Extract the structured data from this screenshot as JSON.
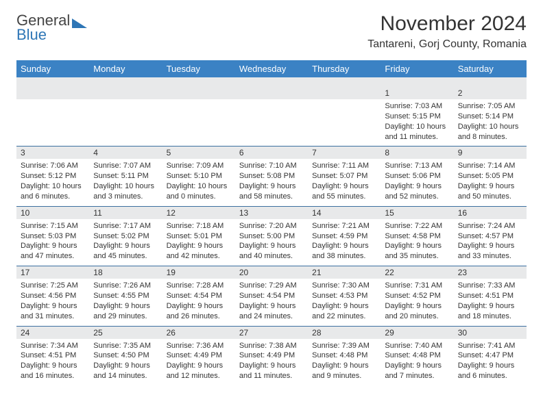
{
  "brand": {
    "line1": "General",
    "line2": "Blue"
  },
  "title": "November 2024",
  "location": "Tantareni, Gorj County, Romania",
  "colors": {
    "header_bg": "#3b82c4",
    "header_text": "#ffffff",
    "daynum_bg": "#e8e9ea",
    "week_border": "#3b6fa0",
    "text": "#333333",
    "brand_blue": "#2e76b6",
    "page_bg": "#ffffff"
  },
  "day_names": [
    "Sunday",
    "Monday",
    "Tuesday",
    "Wednesday",
    "Thursday",
    "Friday",
    "Saturday"
  ],
  "weeks": [
    [
      {
        "n": "",
        "sr": "",
        "ss": "",
        "dl": ""
      },
      {
        "n": "",
        "sr": "",
        "ss": "",
        "dl": ""
      },
      {
        "n": "",
        "sr": "",
        "ss": "",
        "dl": ""
      },
      {
        "n": "",
        "sr": "",
        "ss": "",
        "dl": ""
      },
      {
        "n": "",
        "sr": "",
        "ss": "",
        "dl": ""
      },
      {
        "n": "1",
        "sr": "Sunrise: 7:03 AM",
        "ss": "Sunset: 5:15 PM",
        "dl": "Daylight: 10 hours and 11 minutes."
      },
      {
        "n": "2",
        "sr": "Sunrise: 7:05 AM",
        "ss": "Sunset: 5:14 PM",
        "dl": "Daylight: 10 hours and 8 minutes."
      }
    ],
    [
      {
        "n": "3",
        "sr": "Sunrise: 7:06 AM",
        "ss": "Sunset: 5:12 PM",
        "dl": "Daylight: 10 hours and 6 minutes."
      },
      {
        "n": "4",
        "sr": "Sunrise: 7:07 AM",
        "ss": "Sunset: 5:11 PM",
        "dl": "Daylight: 10 hours and 3 minutes."
      },
      {
        "n": "5",
        "sr": "Sunrise: 7:09 AM",
        "ss": "Sunset: 5:10 PM",
        "dl": "Daylight: 10 hours and 0 minutes."
      },
      {
        "n": "6",
        "sr": "Sunrise: 7:10 AM",
        "ss": "Sunset: 5:08 PM",
        "dl": "Daylight: 9 hours and 58 minutes."
      },
      {
        "n": "7",
        "sr": "Sunrise: 7:11 AM",
        "ss": "Sunset: 5:07 PM",
        "dl": "Daylight: 9 hours and 55 minutes."
      },
      {
        "n": "8",
        "sr": "Sunrise: 7:13 AM",
        "ss": "Sunset: 5:06 PM",
        "dl": "Daylight: 9 hours and 52 minutes."
      },
      {
        "n": "9",
        "sr": "Sunrise: 7:14 AM",
        "ss": "Sunset: 5:05 PM",
        "dl": "Daylight: 9 hours and 50 minutes."
      }
    ],
    [
      {
        "n": "10",
        "sr": "Sunrise: 7:15 AM",
        "ss": "Sunset: 5:03 PM",
        "dl": "Daylight: 9 hours and 47 minutes."
      },
      {
        "n": "11",
        "sr": "Sunrise: 7:17 AM",
        "ss": "Sunset: 5:02 PM",
        "dl": "Daylight: 9 hours and 45 minutes."
      },
      {
        "n": "12",
        "sr": "Sunrise: 7:18 AM",
        "ss": "Sunset: 5:01 PM",
        "dl": "Daylight: 9 hours and 42 minutes."
      },
      {
        "n": "13",
        "sr": "Sunrise: 7:20 AM",
        "ss": "Sunset: 5:00 PM",
        "dl": "Daylight: 9 hours and 40 minutes."
      },
      {
        "n": "14",
        "sr": "Sunrise: 7:21 AM",
        "ss": "Sunset: 4:59 PM",
        "dl": "Daylight: 9 hours and 38 minutes."
      },
      {
        "n": "15",
        "sr": "Sunrise: 7:22 AM",
        "ss": "Sunset: 4:58 PM",
        "dl": "Daylight: 9 hours and 35 minutes."
      },
      {
        "n": "16",
        "sr": "Sunrise: 7:24 AM",
        "ss": "Sunset: 4:57 PM",
        "dl": "Daylight: 9 hours and 33 minutes."
      }
    ],
    [
      {
        "n": "17",
        "sr": "Sunrise: 7:25 AM",
        "ss": "Sunset: 4:56 PM",
        "dl": "Daylight: 9 hours and 31 minutes."
      },
      {
        "n": "18",
        "sr": "Sunrise: 7:26 AM",
        "ss": "Sunset: 4:55 PM",
        "dl": "Daylight: 9 hours and 29 minutes."
      },
      {
        "n": "19",
        "sr": "Sunrise: 7:28 AM",
        "ss": "Sunset: 4:54 PM",
        "dl": "Daylight: 9 hours and 26 minutes."
      },
      {
        "n": "20",
        "sr": "Sunrise: 7:29 AM",
        "ss": "Sunset: 4:54 PM",
        "dl": "Daylight: 9 hours and 24 minutes."
      },
      {
        "n": "21",
        "sr": "Sunrise: 7:30 AM",
        "ss": "Sunset: 4:53 PM",
        "dl": "Daylight: 9 hours and 22 minutes."
      },
      {
        "n": "22",
        "sr": "Sunrise: 7:31 AM",
        "ss": "Sunset: 4:52 PM",
        "dl": "Daylight: 9 hours and 20 minutes."
      },
      {
        "n": "23",
        "sr": "Sunrise: 7:33 AM",
        "ss": "Sunset: 4:51 PM",
        "dl": "Daylight: 9 hours and 18 minutes."
      }
    ],
    [
      {
        "n": "24",
        "sr": "Sunrise: 7:34 AM",
        "ss": "Sunset: 4:51 PM",
        "dl": "Daylight: 9 hours and 16 minutes."
      },
      {
        "n": "25",
        "sr": "Sunrise: 7:35 AM",
        "ss": "Sunset: 4:50 PM",
        "dl": "Daylight: 9 hours and 14 minutes."
      },
      {
        "n": "26",
        "sr": "Sunrise: 7:36 AM",
        "ss": "Sunset: 4:49 PM",
        "dl": "Daylight: 9 hours and 12 minutes."
      },
      {
        "n": "27",
        "sr": "Sunrise: 7:38 AM",
        "ss": "Sunset: 4:49 PM",
        "dl": "Daylight: 9 hours and 11 minutes."
      },
      {
        "n": "28",
        "sr": "Sunrise: 7:39 AM",
        "ss": "Sunset: 4:48 PM",
        "dl": "Daylight: 9 hours and 9 minutes."
      },
      {
        "n": "29",
        "sr": "Sunrise: 7:40 AM",
        "ss": "Sunset: 4:48 PM",
        "dl": "Daylight: 9 hours and 7 minutes."
      },
      {
        "n": "30",
        "sr": "Sunrise: 7:41 AM",
        "ss": "Sunset: 4:47 PM",
        "dl": "Daylight: 9 hours and 6 minutes."
      }
    ]
  ]
}
